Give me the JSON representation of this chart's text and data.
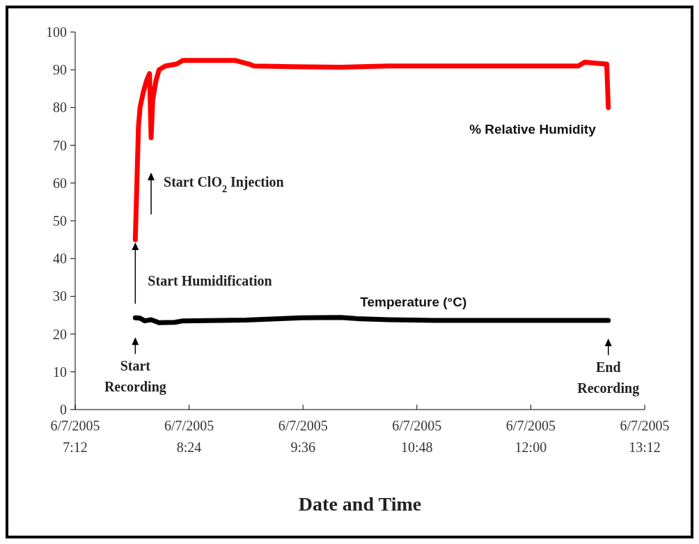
{
  "chart_data": {
    "type": "line",
    "xlabel": "Date and Time",
    "xlim": [
      "2005-06-07T07:12",
      "2005-06-07T13:12"
    ],
    "xticks": [
      {
        "value": "2005-06-07T07:12",
        "label": "6/7/2005\n7:12"
      },
      {
        "value": "2005-06-07T08:24",
        "label": "6/7/2005\n8:24"
      },
      {
        "value": "2005-06-07T09:36",
        "label": "6/7/2005\n9:36"
      },
      {
        "value": "2005-06-07T10:48",
        "label": "6/7/2005\n10:48"
      },
      {
        "value": "2005-06-07T12:00",
        "label": "6/7/2005\n12:00"
      },
      {
        "value": "2005-06-07T13:12",
        "label": "6/7/2005\n13:12"
      }
    ],
    "ylim": [
      0,
      100
    ],
    "yticks": [
      0,
      10,
      20,
      30,
      40,
      50,
      60,
      70,
      80,
      90,
      100
    ],
    "series": [
      {
        "name": "% Relative Humidity",
        "color": "#ff0000",
        "x": [
          "2005-06-07T07:50",
          "2005-06-07T07:51",
          "2005-06-07T07:52",
          "2005-06-07T07:53",
          "2005-06-07T07:55",
          "2005-06-07T07:57",
          "2005-06-07T07:59",
          "2005-06-07T08:00",
          "2005-06-07T08:01",
          "2005-06-07T08:03",
          "2005-06-07T08:05",
          "2005-06-07T08:09",
          "2005-06-07T08:16",
          "2005-06-07T08:20",
          "2005-06-07T08:30",
          "2005-06-07T08:53",
          "2005-06-07T09:02",
          "2005-06-07T09:05",
          "2005-06-07T09:30",
          "2005-06-07T10:00",
          "2005-06-07T10:30",
          "2005-06-07T11:00",
          "2005-06-07T12:00",
          "2005-06-07T12:30",
          "2005-06-07T12:34",
          "2005-06-07T12:40",
          "2005-06-07T12:48",
          "2005-06-07T12:49"
        ],
        "values": [
          45,
          60,
          75,
          80,
          84,
          87,
          89,
          72,
          82,
          87,
          90,
          91,
          91.5,
          92.5,
          92.5,
          92.5,
          91.5,
          91,
          90.8,
          90.7,
          91,
          91,
          91,
          91,
          92,
          91.8,
          91.5,
          80
        ]
      },
      {
        "name": "Temperature (°C)",
        "color": "#000000",
        "x": [
          "2005-06-07T07:50",
          "2005-06-07T07:53",
          "2005-06-07T07:56",
          "2005-06-07T08:00",
          "2005-06-07T08:05",
          "2005-06-07T08:15",
          "2005-06-07T08:20",
          "2005-06-07T09:00",
          "2005-06-07T09:35",
          "2005-06-07T10:00",
          "2005-06-07T10:10",
          "2005-06-07T10:30",
          "2005-06-07T11:00",
          "2005-06-07T12:49"
        ],
        "values": [
          24.3,
          24.2,
          23.5,
          23.8,
          23,
          23.1,
          23.5,
          23.7,
          24.3,
          24.4,
          24.1,
          23.8,
          23.6,
          23.6
        ]
      }
    ],
    "annotations": [
      {
        "text": "Start\nRecording",
        "x": "2005-06-07T07:50",
        "y": 24.3
      },
      {
        "text": "Start Humidification",
        "x": "2005-06-07T07:50",
        "y": 45
      },
      {
        "text": "Start ClO$_{2}$ Injection",
        "x": "2005-06-07T08:00",
        "y": 72
      },
      {
        "text": "End\nRecording",
        "x": "2005-06-07T12:49",
        "y": 23.6
      }
    ]
  }
}
